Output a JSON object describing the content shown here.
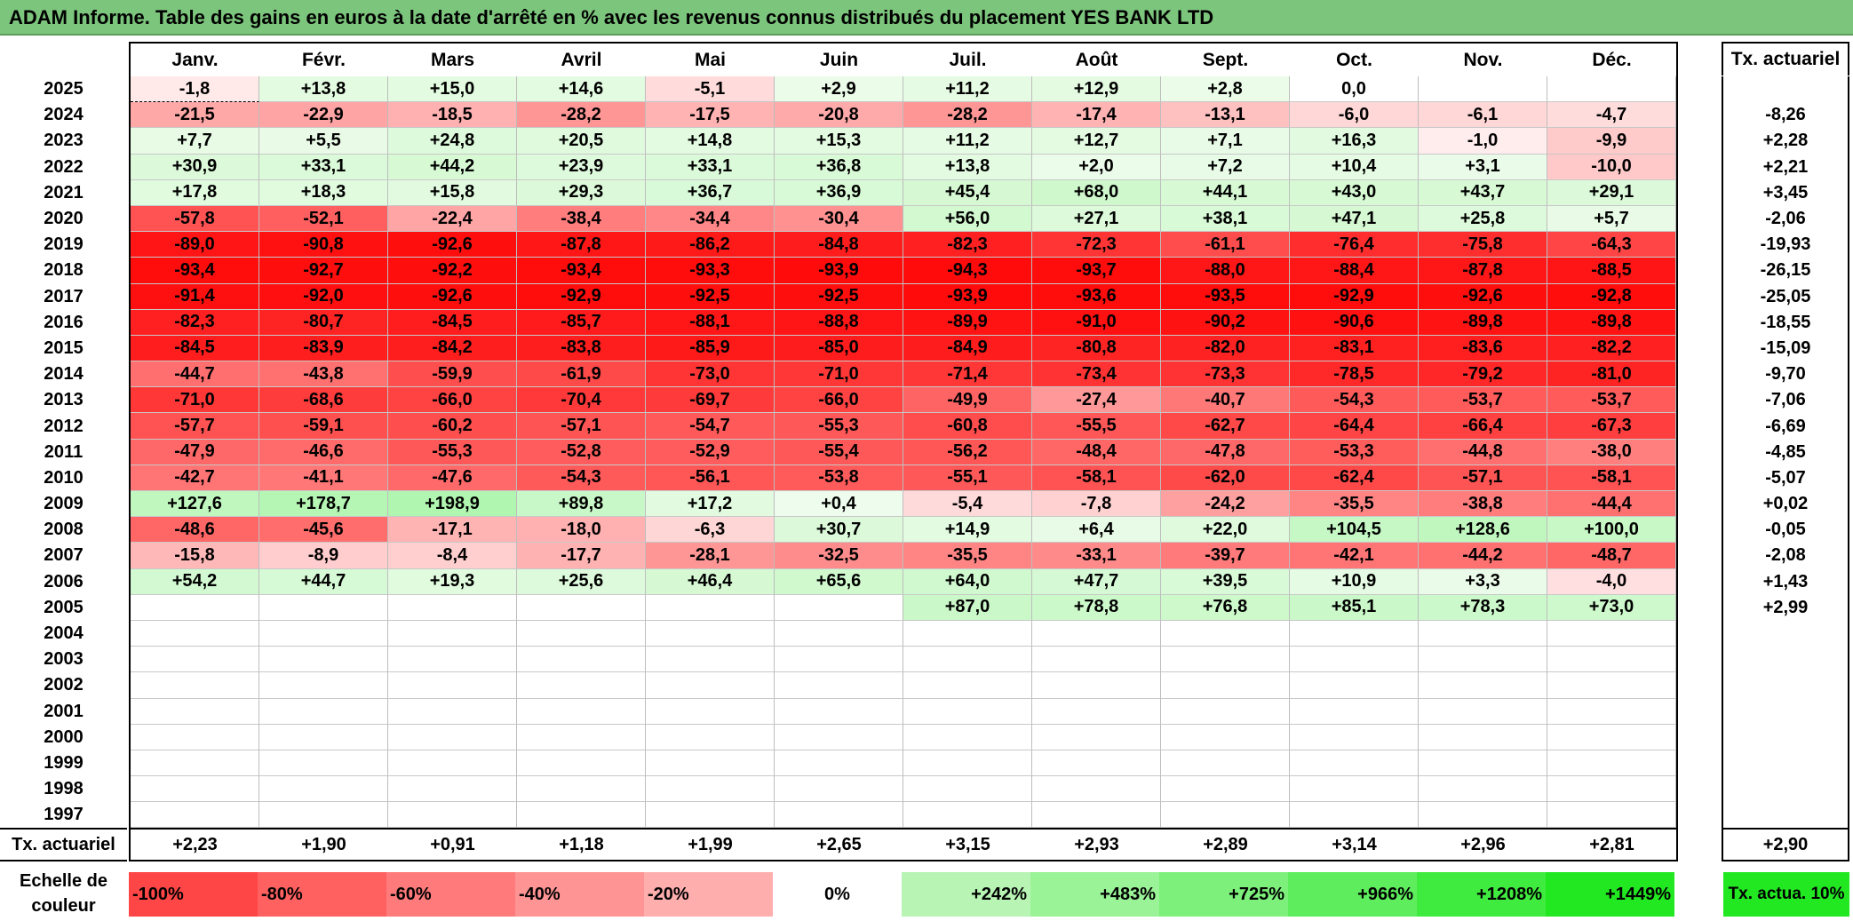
{
  "title": "ADAM Informe. Table des gains en euros à la date d'arrêté en % avec les revenus connus distribués du placement YES BANK LTD",
  "months": [
    "Janv.",
    "Févr.",
    "Mars",
    "Avril",
    "Mai",
    "Juin",
    "Juil.",
    "Août",
    "Sept.",
    "Oct.",
    "Nov.",
    "Déc."
  ],
  "annual_header": "Tx. actuariel",
  "monthly_rate_label": "Tx. actuariel",
  "legend_label": "Echelle de couleur",
  "legend_annual": "Tx. actua. 10%",
  "colors": {
    "title_bg": "#7cc57c",
    "neg_max": "#ff0000",
    "pos_max": "#22e822",
    "neutral": "#ffffff"
  },
  "chart_data": {
    "type": "table",
    "title": "ADAM Informe. Table des gains en euros à la date d'arrêté en % avec les revenus connus distribués du placement YES BANK LTD",
    "columns": [
      "Janv.",
      "Févr.",
      "Mars",
      "Avril",
      "Mai",
      "Juin",
      "Juil.",
      "Août",
      "Sept.",
      "Oct.",
      "Nov.",
      "Déc."
    ],
    "rows": [
      {
        "year": "2025",
        "values": [
          "-1,8",
          "+13,8",
          "+15,0",
          "+14,6",
          "-5,1",
          "+2,9",
          "+11,2",
          "+12,9",
          "+2,8",
          "0,0",
          "",
          ""
        ],
        "annual": ""
      },
      {
        "year": "2024",
        "values": [
          "-21,5",
          "-22,9",
          "-18,5",
          "-28,2",
          "-17,5",
          "-20,8",
          "-28,2",
          "-17,4",
          "-13,1",
          "-6,0",
          "-6,1",
          "-4,7"
        ],
        "annual": "-8,26"
      },
      {
        "year": "2023",
        "values": [
          "+7,7",
          "+5,5",
          "+24,8",
          "+20,5",
          "+14,8",
          "+15,3",
          "+11,2",
          "+12,7",
          "+7,1",
          "+16,3",
          "-1,0",
          "-9,9"
        ],
        "annual": "+2,28"
      },
      {
        "year": "2022",
        "values": [
          "+30,9",
          "+33,1",
          "+44,2",
          "+23,9",
          "+33,1",
          "+36,8",
          "+13,8",
          "+2,0",
          "+7,2",
          "+10,4",
          "+3,1",
          "-10,0"
        ],
        "annual": "+2,21"
      },
      {
        "year": "2021",
        "values": [
          "+17,8",
          "+18,3",
          "+15,8",
          "+29,3",
          "+36,7",
          "+36,9",
          "+45,4",
          "+68,0",
          "+44,1",
          "+43,0",
          "+43,7",
          "+29,1"
        ],
        "annual": "+3,45"
      },
      {
        "year": "2020",
        "values": [
          "-57,8",
          "-52,1",
          "-22,4",
          "-38,4",
          "-34,4",
          "-30,4",
          "+56,0",
          "+27,1",
          "+38,1",
          "+47,1",
          "+25,8",
          "+5,7"
        ],
        "annual": "-2,06"
      },
      {
        "year": "2019",
        "values": [
          "-89,0",
          "-90,8",
          "-92,6",
          "-87,8",
          "-86,2",
          "-84,8",
          "-82,3",
          "-72,3",
          "-61,1",
          "-76,4",
          "-75,8",
          "-64,3"
        ],
        "annual": "-19,93"
      },
      {
        "year": "2018",
        "values": [
          "-93,4",
          "-92,7",
          "-92,2",
          "-93,4",
          "-93,3",
          "-93,9",
          "-94,3",
          "-93,7",
          "-88,0",
          "-88,4",
          "-87,8",
          "-88,5"
        ],
        "annual": "-26,15"
      },
      {
        "year": "2017",
        "values": [
          "-91,4",
          "-92,0",
          "-92,6",
          "-92,9",
          "-92,5",
          "-92,5",
          "-93,9",
          "-93,6",
          "-93,5",
          "-92,9",
          "-92,6",
          "-92,8"
        ],
        "annual": "-25,05"
      },
      {
        "year": "2016",
        "values": [
          "-82,3",
          "-80,7",
          "-84,5",
          "-85,7",
          "-88,1",
          "-88,8",
          "-89,9",
          "-91,0",
          "-90,2",
          "-90,6",
          "-89,8",
          "-89,8"
        ],
        "annual": "-18,55"
      },
      {
        "year": "2015",
        "values": [
          "-84,5",
          "-83,9",
          "-84,2",
          "-83,8",
          "-85,9",
          "-85,0",
          "-84,9",
          "-80,8",
          "-82,0",
          "-83,1",
          "-83,6",
          "-82,2"
        ],
        "annual": "-15,09"
      },
      {
        "year": "2014",
        "values": [
          "-44,7",
          "-43,8",
          "-59,9",
          "-61,9",
          "-73,0",
          "-71,0",
          "-71,4",
          "-73,4",
          "-73,3",
          "-78,5",
          "-79,2",
          "-81,0"
        ],
        "annual": "-9,70"
      },
      {
        "year": "2013",
        "values": [
          "-71,0",
          "-68,6",
          "-66,0",
          "-70,4",
          "-69,7",
          "-66,0",
          "-49,9",
          "-27,4",
          "-40,7",
          "-54,3",
          "-53,7",
          "-53,7"
        ],
        "annual": "-7,06"
      },
      {
        "year": "2012",
        "values": [
          "-57,7",
          "-59,1",
          "-60,2",
          "-57,1",
          "-54,7",
          "-55,3",
          "-60,8",
          "-55,5",
          "-62,7",
          "-64,4",
          "-66,4",
          "-67,3"
        ],
        "annual": "-6,69"
      },
      {
        "year": "2011",
        "values": [
          "-47,9",
          "-46,6",
          "-55,3",
          "-52,8",
          "-52,9",
          "-55,4",
          "-56,2",
          "-48,4",
          "-47,8",
          "-53,3",
          "-44,8",
          "-38,0"
        ],
        "annual": "-4,85"
      },
      {
        "year": "2010",
        "values": [
          "-42,7",
          "-41,1",
          "-47,6",
          "-54,3",
          "-56,1",
          "-53,8",
          "-55,1",
          "-58,1",
          "-62,0",
          "-62,4",
          "-57,1",
          "-58,1"
        ],
        "annual": "-5,07"
      },
      {
        "year": "2009",
        "values": [
          "+127,6",
          "+178,7",
          "+198,9",
          "+89,8",
          "+17,2",
          "+0,4",
          "-5,4",
          "-7,8",
          "-24,2",
          "-35,5",
          "-38,8",
          "-44,4"
        ],
        "annual": "+0,02"
      },
      {
        "year": "2008",
        "values": [
          "-48,6",
          "-45,6",
          "-17,1",
          "-18,0",
          "-6,3",
          "+30,7",
          "+14,9",
          "+6,4",
          "+22,0",
          "+104,5",
          "+128,6",
          "+100,0"
        ],
        "annual": "-0,05"
      },
      {
        "year": "2007",
        "values": [
          "-15,8",
          "-8,9",
          "-8,4",
          "-17,7",
          "-28,1",
          "-32,5",
          "-35,5",
          "-33,1",
          "-39,7",
          "-42,1",
          "-44,2",
          "-48,7"
        ],
        "annual": "-2,08"
      },
      {
        "year": "2006",
        "values": [
          "+54,2",
          "+44,7",
          "+19,3",
          "+25,6",
          "+46,4",
          "+65,6",
          "+64,0",
          "+47,7",
          "+39,5",
          "+10,9",
          "+3,3",
          "-4,0"
        ],
        "annual": "+1,43"
      },
      {
        "year": "2005",
        "values": [
          "",
          "",
          "",
          "",
          "",
          "",
          "+87,0",
          "+78,8",
          "+76,8",
          "+85,1",
          "+78,3",
          "+73,0"
        ],
        "annual": "+2,99"
      },
      {
        "year": "2004",
        "values": [
          "",
          "",
          "",
          "",
          "",
          "",
          "",
          "",
          "",
          "",
          "",
          ""
        ],
        "annual": ""
      },
      {
        "year": "2003",
        "values": [
          "",
          "",
          "",
          "",
          "",
          "",
          "",
          "",
          "",
          "",
          "",
          ""
        ],
        "annual": ""
      },
      {
        "year": "2002",
        "values": [
          "",
          "",
          "",
          "",
          "",
          "",
          "",
          "",
          "",
          "",
          "",
          ""
        ],
        "annual": ""
      },
      {
        "year": "2001",
        "values": [
          "",
          "",
          "",
          "",
          "",
          "",
          "",
          "",
          "",
          "",
          "",
          ""
        ],
        "annual": ""
      },
      {
        "year": "2000",
        "values": [
          "",
          "",
          "",
          "",
          "",
          "",
          "",
          "",
          "",
          "",
          "",
          ""
        ],
        "annual": ""
      },
      {
        "year": "1999",
        "values": [
          "",
          "",
          "",
          "",
          "",
          "",
          "",
          "",
          "",
          "",
          "",
          ""
        ],
        "annual": ""
      },
      {
        "year": "1998",
        "values": [
          "",
          "",
          "",
          "",
          "",
          "",
          "",
          "",
          "",
          "",
          "",
          ""
        ],
        "annual": ""
      },
      {
        "year": "1997",
        "values": [
          "",
          "",
          "",
          "",
          "",
          "",
          "",
          "",
          "",
          "",
          "",
          ""
        ],
        "annual": ""
      }
    ],
    "monthly_rates": [
      "+2,23",
      "+1,90",
      "+0,91",
      "+1,18",
      "+1,99",
      "+2,65",
      "+3,15",
      "+2,93",
      "+2,89",
      "+3,14",
      "+2,96",
      "+2,81"
    ],
    "overall_rate": "+2,90",
    "legend": [
      {
        "label": "-100%",
        "value": -100
      },
      {
        "label": "-80%",
        "value": -80
      },
      {
        "label": "-60%",
        "value": -60
      },
      {
        "label": "-40%",
        "value": -40
      },
      {
        "label": "-20%",
        "value": -20
      },
      {
        "label": "0%",
        "value": 0
      },
      {
        "label": "+242%",
        "value": 242
      },
      {
        "label": "+483%",
        "value": 483
      },
      {
        "label": "+725%",
        "value": 725
      },
      {
        "label": "+966%",
        "value": 966
      },
      {
        "label": "+1208%",
        "value": 1208
      },
      {
        "label": "+1449%",
        "value": 1449
      }
    ]
  }
}
